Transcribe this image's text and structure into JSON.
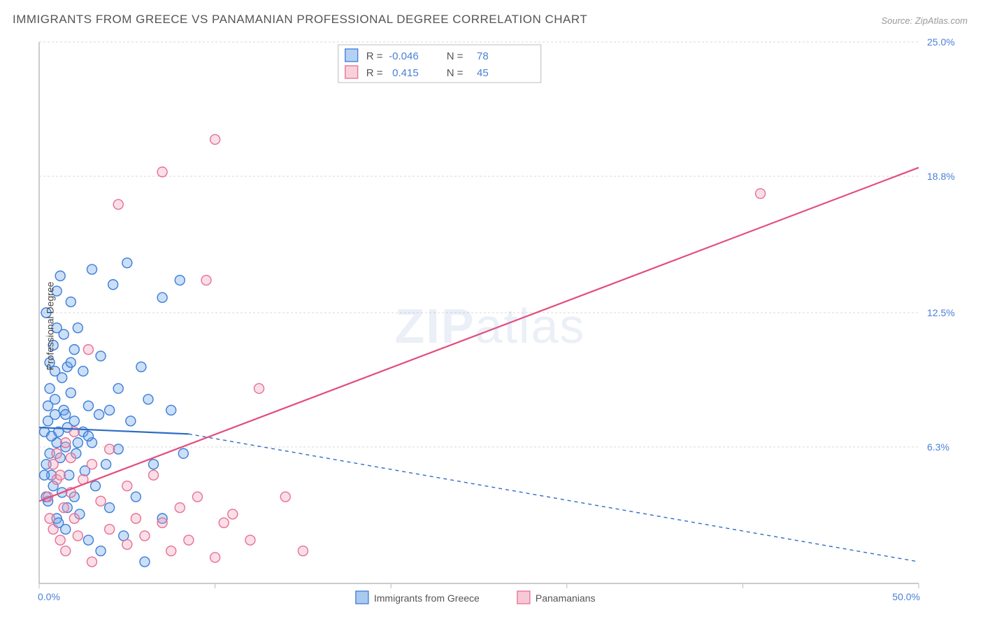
{
  "title": "IMMIGRANTS FROM GREECE VS PANAMANIAN PROFESSIONAL DEGREE CORRELATION CHART",
  "source": "Source: ZipAtlas.com",
  "watermark": {
    "bold": "ZIP",
    "rest": "atlas"
  },
  "y_axis_label": "Professional Degree",
  "chart": {
    "type": "scatter-correlation",
    "plot_bg": "#ffffff",
    "axis_color": "#bcbcbc",
    "grid_color": "#d8d8d8",
    "grid_dash": "3,3",
    "tick_color": "#bcbcbc",
    "tick_label_color": "#4a7fd8",
    "xlim": [
      0,
      50
    ],
    "ylim": [
      0,
      25
    ],
    "x_ticks": [
      0,
      10,
      20,
      30,
      40,
      50
    ],
    "y_ticks": [
      6.3,
      12.5,
      18.8,
      25.0
    ],
    "x_tick_labels": {
      "0": "0.0%",
      "50": "50.0%"
    },
    "y_tick_labels": {
      "6.3": "6.3%",
      "12.5": "12.5%",
      "18.8": "18.8%",
      "25.0": "25.0%"
    },
    "marker_radius": 7,
    "marker_stroke_width": 1.4,
    "marker_fill_opacity": 0.35,
    "series": [
      {
        "name": "Immigrants from Greece",
        "color": "#6aa3e8",
        "stroke": "#3b7dd8",
        "trend": {
          "solid_end_x": 8.5,
          "y_at_x0": 7.2,
          "y_at_solid_end": 6.9,
          "y_at_xmax": 1.0,
          "line_color": "#2e6cc4",
          "line_width": 2.2,
          "dash": "5,5"
        },
        "R": "-0.046",
        "N": "78",
        "points": [
          [
            0.3,
            7.0
          ],
          [
            0.4,
            5.5
          ],
          [
            0.5,
            8.2
          ],
          [
            0.5,
            7.5
          ],
          [
            0.6,
            6.0
          ],
          [
            0.6,
            9.0
          ],
          [
            0.6,
            10.2
          ],
          [
            0.7,
            5.0
          ],
          [
            0.8,
            11.0
          ],
          [
            0.8,
            4.5
          ],
          [
            0.9,
            7.8
          ],
          [
            0.9,
            8.5
          ],
          [
            1.0,
            13.5
          ],
          [
            1.0,
            6.5
          ],
          [
            1.0,
            3.0
          ],
          [
            1.1,
            7.0
          ],
          [
            1.2,
            14.2
          ],
          [
            1.2,
            5.8
          ],
          [
            1.3,
            4.2
          ],
          [
            1.3,
            9.5
          ],
          [
            1.4,
            8.0
          ],
          [
            1.4,
            11.5
          ],
          [
            1.5,
            6.3
          ],
          [
            1.5,
            2.5
          ],
          [
            1.6,
            7.2
          ],
          [
            1.6,
            10.0
          ],
          [
            1.7,
            5.0
          ],
          [
            1.8,
            8.8
          ],
          [
            1.8,
            13.0
          ],
          [
            2.0,
            7.5
          ],
          [
            2.0,
            4.0
          ],
          [
            2.1,
            6.0
          ],
          [
            2.2,
            11.8
          ],
          [
            2.3,
            3.2
          ],
          [
            2.5,
            7.0
          ],
          [
            2.5,
            9.8
          ],
          [
            2.6,
            5.2
          ],
          [
            2.8,
            8.2
          ],
          [
            2.8,
            2.0
          ],
          [
            3.0,
            6.5
          ],
          [
            3.0,
            14.5
          ],
          [
            3.2,
            4.5
          ],
          [
            3.4,
            7.8
          ],
          [
            3.5,
            10.5
          ],
          [
            3.5,
            1.5
          ],
          [
            3.8,
            5.5
          ],
          [
            4.0,
            8.0
          ],
          [
            4.0,
            3.5
          ],
          [
            4.2,
            13.8
          ],
          [
            4.5,
            6.2
          ],
          [
            4.5,
            9.0
          ],
          [
            4.8,
            2.2
          ],
          [
            5.0,
            14.8
          ],
          [
            5.2,
            7.5
          ],
          [
            5.5,
            4.0
          ],
          [
            5.8,
            10.0
          ],
          [
            6.0,
            1.0
          ],
          [
            6.2,
            8.5
          ],
          [
            6.5,
            5.5
          ],
          [
            7.0,
            13.2
          ],
          [
            7.0,
            3.0
          ],
          [
            7.5,
            8.0
          ],
          [
            8.0,
            14.0
          ],
          [
            8.2,
            6.0
          ],
          [
            2.0,
            10.8
          ],
          [
            0.4,
            12.5
          ],
          [
            1.0,
            11.8
          ],
          [
            1.8,
            10.2
          ],
          [
            0.7,
            6.8
          ],
          [
            1.5,
            7.8
          ],
          [
            2.2,
            6.5
          ],
          [
            0.9,
            9.8
          ],
          [
            0.3,
            5.0
          ],
          [
            0.5,
            3.8
          ],
          [
            1.1,
            2.8
          ],
          [
            2.8,
            6.8
          ],
          [
            0.4,
            4.0
          ],
          [
            1.6,
            3.5
          ]
        ]
      },
      {
        "name": "Panamanians",
        "color": "#f2a4bb",
        "stroke": "#e86f94",
        "trend": {
          "y_at_x0": 3.8,
          "y_at_xmax": 19.2,
          "line_color": "#e34d7c",
          "line_width": 2.2
        },
        "R": "0.415",
        "N": "45",
        "points": [
          [
            0.5,
            4.0
          ],
          [
            0.6,
            3.0
          ],
          [
            0.8,
            5.5
          ],
          [
            0.8,
            2.5
          ],
          [
            1.0,
            4.8
          ],
          [
            1.0,
            6.0
          ],
          [
            1.2,
            2.0
          ],
          [
            1.2,
            5.0
          ],
          [
            1.4,
            3.5
          ],
          [
            1.5,
            6.5
          ],
          [
            1.5,
            1.5
          ],
          [
            1.8,
            4.2
          ],
          [
            1.8,
            5.8
          ],
          [
            2.0,
            3.0
          ],
          [
            2.0,
            7.0
          ],
          [
            2.2,
            2.2
          ],
          [
            2.5,
            4.8
          ],
          [
            2.8,
            10.8
          ],
          [
            3.0,
            5.5
          ],
          [
            3.0,
            1.0
          ],
          [
            3.5,
            3.8
          ],
          [
            4.0,
            2.5
          ],
          [
            4.0,
            6.2
          ],
          [
            4.5,
            17.5
          ],
          [
            5.0,
            4.5
          ],
          [
            5.0,
            1.8
          ],
          [
            5.5,
            3.0
          ],
          [
            6.0,
            2.2
          ],
          [
            6.5,
            5.0
          ],
          [
            7.0,
            2.8
          ],
          [
            7.0,
            19.0
          ],
          [
            7.5,
            1.5
          ],
          [
            8.0,
            3.5
          ],
          [
            8.5,
            2.0
          ],
          [
            9.0,
            4.0
          ],
          [
            10.0,
            1.2
          ],
          [
            10.0,
            20.5
          ],
          [
            10.5,
            2.8
          ],
          [
            11.0,
            3.2
          ],
          [
            12.5,
            9.0
          ],
          [
            14.0,
            4.0
          ],
          [
            15.0,
            1.5
          ],
          [
            9.5,
            14.0
          ],
          [
            12.0,
            2.0
          ],
          [
            41.0,
            18.0
          ]
        ]
      }
    ],
    "legend_top": {
      "box_stroke": "#bcbcbc",
      "box_fill": "#ffffff",
      "R_label": "R =",
      "N_label": "N =",
      "value_color": "#4a7fd8"
    },
    "legend_bottom": [
      {
        "label": "Immigrants from Greece",
        "swatch_fill": "#a9c9f1",
        "swatch_stroke": "#3b7dd8"
      },
      {
        "label": "Panamanians",
        "swatch_fill": "#f7c8d6",
        "swatch_stroke": "#e86f94"
      }
    ]
  }
}
